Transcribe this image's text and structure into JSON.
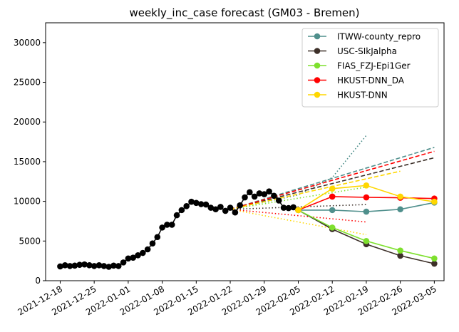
{
  "chart_data": {
    "type": "line",
    "title": "weekly_inc_case forecast (GM03 - Bremen)",
    "xlabel": "",
    "ylabel": "",
    "xlim": [
      "2021-12-15",
      "2022-03-07"
    ],
    "ylim": [
      0,
      32500
    ],
    "grid": false,
    "legend_position": "top-right",
    "x_ticks": [
      "2021-12-18",
      "2021-12-25",
      "2022-01-01",
      "2022-01-08",
      "2022-01-15",
      "2022-01-22",
      "2022-01-29",
      "2022-02-05",
      "2022-02-12",
      "2022-02-19",
      "2022-02-26",
      "2022-03-05"
    ],
    "y_ticks": [
      0,
      5000,
      10000,
      15000,
      20000,
      25000,
      30000
    ],
    "observed": {
      "color": "#000000",
      "points": [
        [
          "2021-12-18",
          1800
        ],
        [
          "2021-12-19",
          1950
        ],
        [
          "2021-12-20",
          1850
        ],
        [
          "2021-12-21",
          1900
        ],
        [
          "2021-12-22",
          2000
        ],
        [
          "2021-12-23",
          2050
        ],
        [
          "2021-12-24",
          1950
        ],
        [
          "2021-12-25",
          1850
        ],
        [
          "2021-12-26",
          1950
        ],
        [
          "2021-12-27",
          1850
        ],
        [
          "2021-12-28",
          1750
        ],
        [
          "2021-12-29",
          1900
        ],
        [
          "2021-12-30",
          1850
        ],
        [
          "2021-12-31",
          2300
        ],
        [
          "2022-01-01",
          2800
        ],
        [
          "2022-01-02",
          2900
        ],
        [
          "2022-01-03",
          3200
        ],
        [
          "2022-01-04",
          3500
        ],
        [
          "2022-01-05",
          3950
        ],
        [
          "2022-01-06",
          4700
        ],
        [
          "2022-01-07",
          5500
        ],
        [
          "2022-01-08",
          6700
        ],
        [
          "2022-01-09",
          7050
        ],
        [
          "2022-01-10",
          7050
        ],
        [
          "2022-01-11",
          8250
        ],
        [
          "2022-01-12",
          8900
        ],
        [
          "2022-01-13",
          9400
        ],
        [
          "2022-01-14",
          9950
        ],
        [
          "2022-01-15",
          9800
        ],
        [
          "2022-01-16",
          9650
        ],
        [
          "2022-01-17",
          9600
        ],
        [
          "2022-01-18",
          9200
        ],
        [
          "2022-01-19",
          9000
        ],
        [
          "2022-01-20",
          9300
        ],
        [
          "2022-01-21",
          8800
        ],
        [
          "2022-01-22",
          9200
        ],
        [
          "2022-01-23",
          8600
        ],
        [
          "2022-01-24",
          9500
        ],
        [
          "2022-01-25",
          10500
        ],
        [
          "2022-01-26",
          11150
        ],
        [
          "2022-01-27",
          10600
        ],
        [
          "2022-01-28",
          11000
        ],
        [
          "2022-01-29",
          10900
        ],
        [
          "2022-01-30",
          11250
        ],
        [
          "2022-01-31",
          10700
        ],
        [
          "2022-02-01",
          10100
        ],
        [
          "2022-02-02",
          9200
        ],
        [
          "2022-02-03",
          9150
        ],
        [
          "2022-02-04",
          9250
        ]
      ]
    },
    "series": [
      {
        "name": "ITWW-county_repro",
        "color": "#4f8f8c",
        "points": [
          [
            "2022-02-05",
            8900
          ],
          [
            "2022-02-12",
            8900
          ],
          [
            "2022-02-19",
            8700
          ],
          [
            "2022-02-26",
            9000
          ],
          [
            "2022-03-05",
            9850
          ]
        ],
        "dashed": [
          [
            "2022-01-22",
            9000
          ],
          [
            "2022-03-05",
            16800
          ]
        ],
        "dotted": [
          [
            "2022-01-22",
            9000
          ],
          [
            "2022-02-05",
            10800
          ],
          [
            "2022-02-12",
            13000
          ],
          [
            "2022-02-19",
            18300
          ]
        ]
      },
      {
        "name": "USC-SIkJalpha",
        "color": "#3d3029",
        "points": [
          [
            "2022-02-05",
            8900
          ],
          [
            "2022-02-12",
            6500
          ],
          [
            "2022-02-19",
            4600
          ],
          [
            "2022-02-26",
            3150
          ],
          [
            "2022-03-05",
            2150
          ]
        ],
        "dashed": [
          [
            "2022-01-22",
            9000
          ],
          [
            "2022-03-05",
            15500
          ]
        ],
        "dotted": [
          [
            "2022-01-22",
            9000
          ],
          [
            "2022-02-19",
            9600
          ]
        ]
      },
      {
        "name": "FIAS_FZJ-Epi1Ger",
        "color": "#7ee02e",
        "points": [
          [
            "2022-02-05",
            8900
          ],
          [
            "2022-02-12",
            6700
          ],
          [
            "2022-02-19",
            5000
          ],
          [
            "2022-02-26",
            3800
          ],
          [
            "2022-03-05",
            2800
          ]
        ],
        "dotted": [
          [
            "2022-01-22",
            9000
          ],
          [
            "2022-02-19",
            11800
          ]
        ]
      },
      {
        "name": "HKUST-DNN_DA",
        "color": "#ff0000",
        "points": [
          [
            "2022-02-05",
            8900
          ],
          [
            "2022-02-12",
            10600
          ],
          [
            "2022-02-19",
            10500
          ],
          [
            "2022-02-26",
            10450
          ],
          [
            "2022-03-05",
            10350
          ]
        ],
        "dashed": [
          [
            "2022-01-22",
            9000
          ],
          [
            "2022-03-05",
            16300
          ]
        ],
        "dotted": [
          [
            "2022-01-22",
            9000
          ],
          [
            "2022-02-19",
            7400
          ]
        ]
      },
      {
        "name": "HKUST-DNN",
        "color": "#ffd700",
        "points": [
          [
            "2022-02-05",
            8900
          ],
          [
            "2022-02-12",
            11600
          ],
          [
            "2022-02-19",
            12000
          ],
          [
            "2022-02-26",
            10600
          ],
          [
            "2022-03-05",
            9950
          ]
        ],
        "dashed": [
          [
            "2022-01-22",
            9000
          ],
          [
            "2022-02-26",
            13800
          ]
        ],
        "dotted": [
          [
            "2022-01-22",
            9000
          ],
          [
            "2022-02-19",
            5800
          ]
        ]
      }
    ]
  }
}
